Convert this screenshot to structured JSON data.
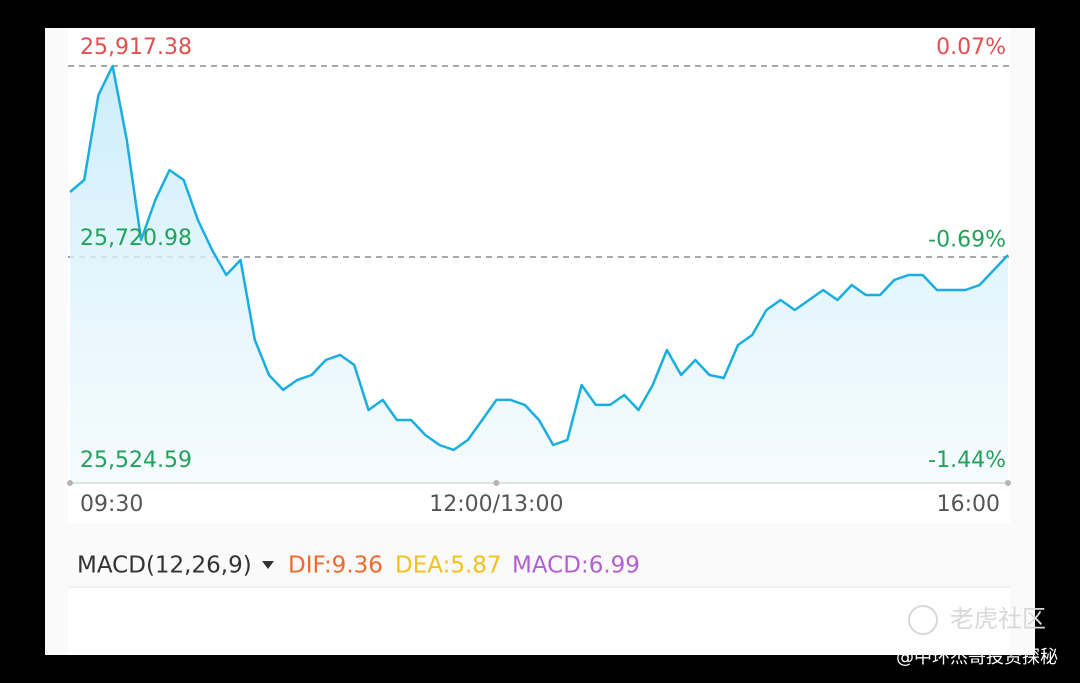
{
  "chart_data": {
    "type": "line",
    "categories": [
      "09:30",
      null,
      null,
      null,
      null,
      null,
      null,
      null,
      null,
      null,
      null,
      null,
      null,
      null,
      null,
      null,
      null,
      null,
      null,
      null,
      null,
      null,
      null,
      null,
      null,
      null,
      null,
      null,
      null,
      null,
      "12:00/13:00",
      null,
      null,
      null,
      null,
      null,
      null,
      null,
      null,
      null,
      null,
      null,
      null,
      null,
      null,
      null,
      null,
      null,
      null,
      null,
      null,
      null,
      null,
      null,
      null,
      null,
      null,
      null,
      null,
      null,
      null,
      null,
      null,
      null,
      null,
      null,
      "16:00"
    ],
    "values": [
      25787.8,
      25800.2,
      25887.5,
      25917.4,
      25841.3,
      25738.5,
      25779.6,
      25810.4,
      25800.2,
      25759.0,
      25728.2,
      25702.5,
      25717.9,
      25635.7,
      25599.7,
      25584.3,
      25594.6,
      25599.7,
      25615.1,
      25620.3,
      25610.0,
      25563.7,
      25574.0,
      25553.4,
      25553.4,
      25538.0,
      25527.7,
      25522.6,
      25532.9,
      25553.4,
      25574.0,
      25574.0,
      25568.9,
      25553.4,
      25527.7,
      25532.9,
      25589.4,
      25568.9,
      25568.9,
      25579.1,
      25563.7,
      25589.4,
      25625.4,
      25599.7,
      25615.1,
      25599.7,
      25596.6,
      25630.5,
      25640.8,
      25666.5,
      25676.8,
      25666.5,
      25676.8,
      25687.1,
      25676.8,
      25692.2,
      25681.9,
      25681.9,
      25697.4,
      25702.5,
      25702.5,
      25687.1,
      25687.1,
      25687.1,
      25692.2,
      25707.6,
      25723.0
    ],
    "color": "#1aaee0",
    "ylim": [
      25524.59,
      25917.38
    ],
    "yticks": [
      {
        "value": 25917.38,
        "label": "25,917.38"
      },
      {
        "value": 25720.98,
        "label": "25,720.98"
      },
      {
        "value": 25524.59,
        "label": "25,524.59"
      }
    ],
    "y2lim": [
      -1.44,
      0.07
    ],
    "y2ticks": [
      {
        "value": 0.07,
        "label": "0.07%"
      },
      {
        "value": -0.69,
        "label": "-0.69%"
      },
      {
        "value": -1.44,
        "label": "-1.44%"
      }
    ],
    "grid": true
  },
  "indicator": {
    "name": "MACD(12,26,9)",
    "dif": "DIF:9.36",
    "dea": "DEA:5.87",
    "macd": "MACD:6.99"
  },
  "watermark": {
    "brand": "老虎社区",
    "author": "@中环杰哥投资探秘"
  }
}
